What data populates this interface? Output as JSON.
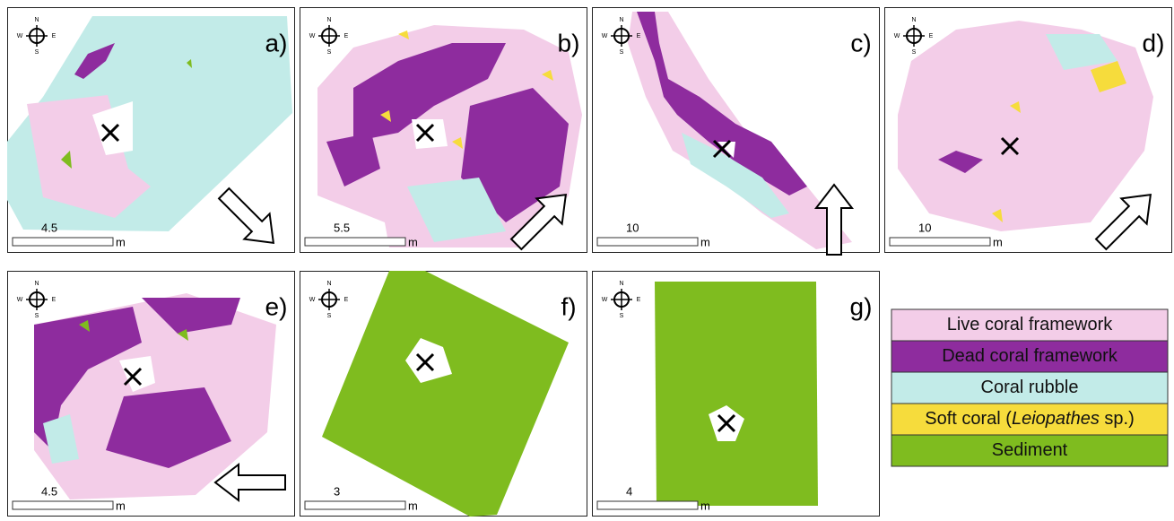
{
  "compass": {
    "north": "N",
    "south": "S",
    "west": "W",
    "east": "E"
  },
  "panels": [
    {
      "label": "a)",
      "scale": "4.5",
      "unit": "m"
    },
    {
      "label": "b)",
      "scale": "5.5",
      "unit": "m"
    },
    {
      "label": "c)",
      "scale": "10",
      "unit": "m"
    },
    {
      "label": "d)",
      "scale": "10",
      "unit": "m"
    },
    {
      "label": "e)",
      "scale": "4.5",
      "unit": "m"
    },
    {
      "label": "f)",
      "scale": "3",
      "unit": "m"
    },
    {
      "label": "g)",
      "scale": "4",
      "unit": "m"
    }
  ],
  "legend": {
    "items": [
      {
        "label_parts": [
          "Live coral framework"
        ],
        "color": "#f3cde8"
      },
      {
        "label_parts": [
          "Dead coral framework"
        ],
        "color": "#8e2c9e"
      },
      {
        "label_parts": [
          "Coral rubble"
        ],
        "color": "#c2ebe8"
      },
      {
        "label_parts": [
          "Soft coral (",
          "Leiopathes",
          " sp.)"
        ],
        "color": "#f6dc3c"
      },
      {
        "label_parts": [
          "Sediment"
        ],
        "color": "#7fbc1f"
      }
    ]
  }
}
